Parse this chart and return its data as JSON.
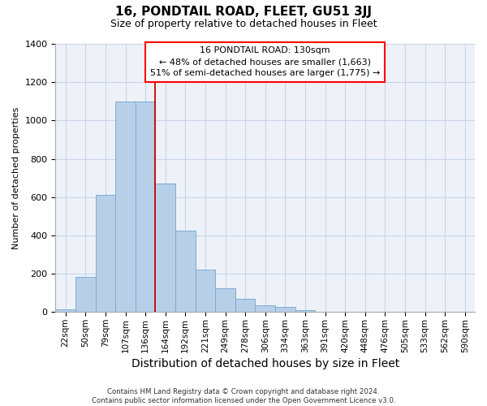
{
  "title": "16, PONDTAIL ROAD, FLEET, GU51 3JJ",
  "subtitle": "Size of property relative to detached houses in Fleet",
  "xlabel": "Distribution of detached houses by size in Fleet",
  "ylabel": "Number of detached properties",
  "footer_line1": "Contains HM Land Registry data © Crown copyright and database right 2024.",
  "footer_line2": "Contains public sector information licensed under the Open Government Licence v3.0.",
  "categories": [
    "22sqm",
    "50sqm",
    "79sqm",
    "107sqm",
    "136sqm",
    "164sqm",
    "192sqm",
    "221sqm",
    "249sqm",
    "278sqm",
    "306sqm",
    "334sqm",
    "363sqm",
    "391sqm",
    "420sqm",
    "448sqm",
    "476sqm",
    "505sqm",
    "533sqm",
    "562sqm",
    "590sqm"
  ],
  "bar_values": [
    15,
    185,
    610,
    1100,
    1100,
    670,
    425,
    220,
    125,
    70,
    35,
    25,
    10,
    0,
    0,
    0,
    0,
    0,
    0,
    0,
    0
  ],
  "bar_color": "#b8cfe8",
  "bar_edge_color": "#7aadd4",
  "ylim": [
    0,
    1400
  ],
  "yticks": [
    0,
    200,
    400,
    600,
    800,
    1000,
    1200,
    1400
  ],
  "property_label": "16 PONDTAIL ROAD: 130sqm",
  "annotation_line1": "← 48% of detached houses are smaller (1,663)",
  "annotation_line2": "51% of semi-detached houses are larger (1,775) →",
  "vline_bin_index": 4,
  "grid_color": "#c8d4e8",
  "bg_color": "#eef2f8",
  "title_fontsize": 11,
  "subtitle_fontsize": 9,
  "xlabel_fontsize": 10,
  "ylabel_fontsize": 8,
  "tick_fontsize": 7.5
}
